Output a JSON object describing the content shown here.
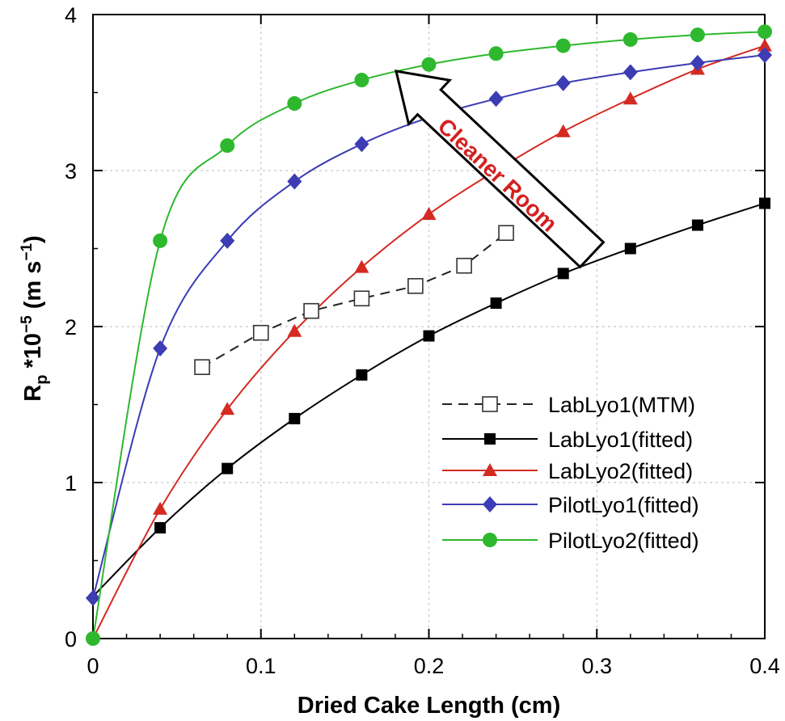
{
  "chart_data": {
    "type": "line",
    "title": "",
    "xlabel": "Dried Cake Length (cm)",
    "ylabel_main": "R",
    "ylabel_sub": "p",
    "ylabel_mid": " *10",
    "ylabel_exp": "−5",
    "ylabel_unit": " (m s",
    "ylabel_unit_exp": "−1",
    "ylabel_close": ")",
    "xlim": [
      0,
      0.4
    ],
    "ylim": [
      0,
      4
    ],
    "xticks": [
      0,
      0.1,
      0.2,
      0.3,
      0.4
    ],
    "xtick_labels": [
      "0",
      "0.1",
      "0.2",
      "0.3",
      "0.4"
    ],
    "yticks": [
      0,
      1,
      2,
      3,
      4
    ],
    "ytick_labels": [
      "0",
      "1",
      "2",
      "3",
      "4"
    ],
    "grid": "dashed",
    "legend_position": "bottom-right",
    "annotation": {
      "text": "Cleaner Room",
      "type": "arrow",
      "points_toward": "upper-left"
    },
    "series": [
      {
        "name": "LabLyo1(MTM)",
        "color": "#000000",
        "marker": "open-square",
        "line": "dashed",
        "x": [
          0.065,
          0.1,
          0.13,
          0.16,
          0.192,
          0.221,
          0.246
        ],
        "y": [
          1.74,
          1.96,
          2.1,
          2.18,
          2.26,
          2.39,
          2.6
        ]
      },
      {
        "name": "LabLyo1(fitted)",
        "color": "#000000",
        "marker": "filled-square",
        "line": "solid",
        "curve_x": [
          0,
          0.04,
          0.08,
          0.12,
          0.16,
          0.2,
          0.24,
          0.28,
          0.32,
          0.36,
          0.4
        ],
        "curve_y": [
          0.27,
          0.71,
          1.09,
          1.41,
          1.69,
          1.94,
          2.15,
          2.34,
          2.5,
          2.65,
          2.79
        ],
        "marker_x": [
          0.04,
          0.08,
          0.12,
          0.16,
          0.2,
          0.24,
          0.28,
          0.32,
          0.36,
          0.4
        ],
        "marker_y": [
          0.71,
          1.09,
          1.41,
          1.69,
          1.94,
          2.15,
          2.34,
          2.5,
          2.65,
          2.79
        ]
      },
      {
        "name": "LabLyo2(fitted)",
        "color": "#d42a22",
        "marker": "filled-triangle",
        "line": "solid",
        "curve_x": [
          0,
          0.04,
          0.08,
          0.12,
          0.16,
          0.2,
          0.24,
          0.28,
          0.32,
          0.36,
          0.4
        ],
        "curve_y": [
          0.0,
          0.83,
          1.47,
          1.97,
          2.38,
          2.72,
          3.0,
          3.25,
          3.46,
          3.65,
          3.8
        ],
        "marker_x": [
          0.04,
          0.08,
          0.12,
          0.16,
          0.2,
          0.28,
          0.32,
          0.36,
          0.4
        ],
        "marker_y": [
          0.83,
          1.47,
          1.97,
          2.38,
          2.72,
          3.25,
          3.46,
          3.65,
          3.8
        ]
      },
      {
        "name": "PilotLyo1(fitted)",
        "color": "#3c3cb4",
        "marker": "filled-diamond",
        "line": "solid",
        "curve_x": [
          0,
          0.04,
          0.08,
          0.12,
          0.16,
          0.2,
          0.24,
          0.28,
          0.32,
          0.36,
          0.4
        ],
        "curve_y": [
          0.26,
          1.86,
          2.55,
          2.93,
          3.17,
          3.34,
          3.46,
          3.56,
          3.63,
          3.69,
          3.74
        ],
        "marker_x": [
          0,
          0.04,
          0.08,
          0.12,
          0.16,
          0.24,
          0.28,
          0.32,
          0.36,
          0.4
        ],
        "marker_y": [
          0.26,
          1.86,
          2.55,
          2.93,
          3.17,
          3.46,
          3.56,
          3.63,
          3.69,
          3.74
        ]
      },
      {
        "name": "PilotLyo2(fitted)",
        "color": "#2eb82e",
        "marker": "filled-circle",
        "line": "solid",
        "curve_x": [
          0,
          0.04,
          0.08,
          0.12,
          0.16,
          0.2,
          0.24,
          0.28,
          0.32,
          0.36,
          0.4
        ],
        "curve_y": [
          0.0,
          2.55,
          3.16,
          3.43,
          3.58,
          3.68,
          3.75,
          3.8,
          3.84,
          3.87,
          3.89
        ],
        "marker_x": [
          0,
          0.04,
          0.08,
          0.12,
          0.16,
          0.2,
          0.24,
          0.28,
          0.32,
          0.36,
          0.4
        ],
        "marker_y": [
          0.0,
          2.55,
          3.16,
          3.43,
          3.58,
          3.68,
          3.75,
          3.8,
          3.84,
          3.87,
          3.89
        ]
      }
    ]
  }
}
